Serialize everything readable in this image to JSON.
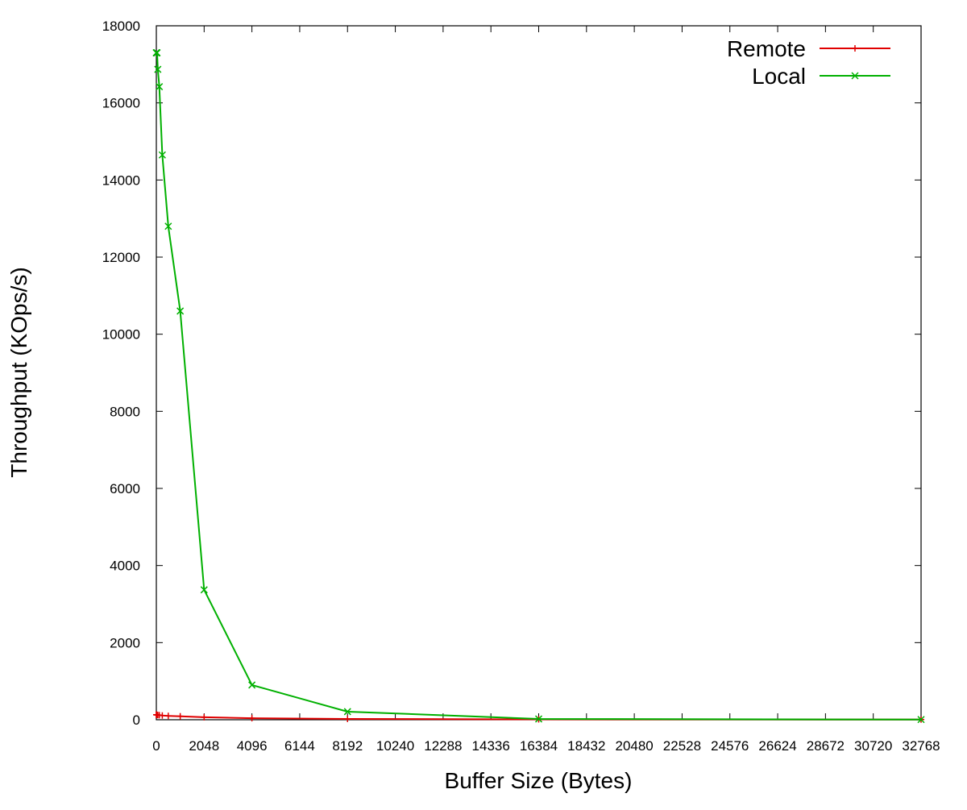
{
  "chart_data": {
    "type": "line",
    "title": "",
    "xlabel": "Buffer Size (Bytes)",
    "ylabel": "Throughput (KOps/s)",
    "xlim": [
      0,
      32768
    ],
    "ylim": [
      0,
      18000
    ],
    "x_ticks": [
      0,
      2048,
      4096,
      6144,
      8192,
      10240,
      12288,
      14336,
      16384,
      18432,
      20480,
      22528,
      24576,
      26624,
      28672,
      30720,
      32768
    ],
    "y_ticks": [
      0,
      2000,
      4000,
      6000,
      8000,
      10000,
      12000,
      14000,
      16000,
      18000
    ],
    "x_tick_labels": [
      "0",
      "2048",
      "4096",
      "6144",
      "8192",
      "10240",
      "12288",
      "14336",
      "16384",
      "18432",
      "20480",
      "22528",
      "24576",
      "26624",
      "28672",
      "30720",
      "32768"
    ],
    "y_tick_labels": [
      "0",
      "2000",
      "4000",
      "6000",
      "8000",
      "10000",
      "12000",
      "14000",
      "16000",
      "18000"
    ],
    "grid": false,
    "legend_position": "top-right",
    "series": [
      {
        "name": "Remote",
        "color": "#e00000",
        "marker": "plus",
        "x": [
          1,
          2,
          4,
          8,
          16,
          32,
          64,
          128,
          256,
          512,
          1024,
          2048,
          4096,
          8192,
          16384,
          32768
        ],
        "y": [
          130,
          130,
          130,
          130,
          128,
          125,
          122,
          118,
          110,
          100,
          90,
          65,
          40,
          22,
          10,
          5
        ]
      },
      {
        "name": "Local",
        "color": "#00b000",
        "marker": "x",
        "x": [
          1,
          2,
          4,
          8,
          16,
          32,
          64,
          128,
          256,
          512,
          1024,
          2048,
          4096,
          8192,
          16384,
          32768
        ],
        "y": [
          17300,
          17300,
          17300,
          17300,
          17300,
          17300,
          16870,
          16420,
          14650,
          12800,
          10600,
          3370,
          900,
          210,
          20,
          5
        ]
      }
    ]
  }
}
